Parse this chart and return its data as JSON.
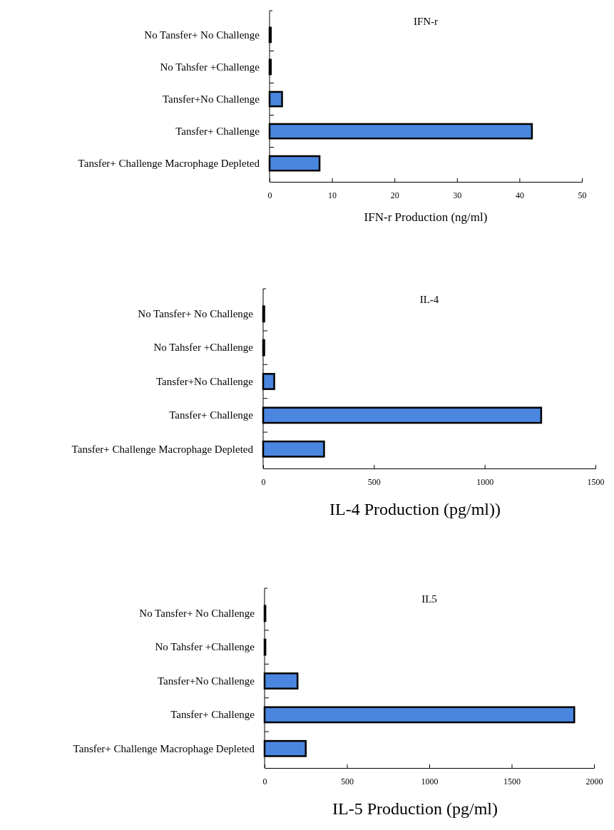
{
  "chart_data": [
    {
      "type": "bar",
      "orientation": "horizontal",
      "title": "IFN-r",
      "xlabel": "IFN-r Production (ng/ml)",
      "categories": [
        "No Tansfer+ No Challenge",
        "No Tahsfer +Challenge",
        "Tansfer+No Challenge",
        "Tansfer+ Challenge",
        "Tansfer+ Challenge Macrophage Depleted"
      ],
      "values": [
        0.2,
        0.2,
        2,
        42,
        8
      ],
      "color": "#4a86e0",
      "xlim": [
        0,
        50
      ],
      "xticks": [
        0,
        10,
        20,
        30,
        40,
        50
      ]
    },
    {
      "type": "bar",
      "orientation": "horizontal",
      "title": "IL-4",
      "xlabel": "IL-4 Production (pg/ml))",
      "categories": [
        "No Tansfer+ No Challenge",
        "No Tahsfer +Challenge",
        "Tansfer+No Challenge",
        "Tansfer+ Challenge",
        "Tansfer+ Challenge Macrophage Depleted"
      ],
      "values": [
        5,
        5,
        50,
        1255,
        275
      ],
      "color": "#4a86e0",
      "xlim": [
        0,
        1500
      ],
      "xticks": [
        0,
        500,
        1000,
        1500
      ]
    },
    {
      "type": "bar",
      "orientation": "horizontal",
      "title": "IL5",
      "xlabel": "IL-5 Production (pg/ml)",
      "categories": [
        "No Tansfer+ No Challenge",
        "No Tahsfer +Challenge",
        "Tansfer+No Challenge",
        "Tansfer+ Challenge",
        "Tansfer+ Challenge Macrophage Depleted"
      ],
      "values": [
        5,
        5,
        200,
        1880,
        250
      ],
      "color": "#4a86e0",
      "xlim": [
        0,
        2000
      ],
      "xticks": [
        0,
        500,
        1000,
        1500,
        2000
      ]
    }
  ]
}
